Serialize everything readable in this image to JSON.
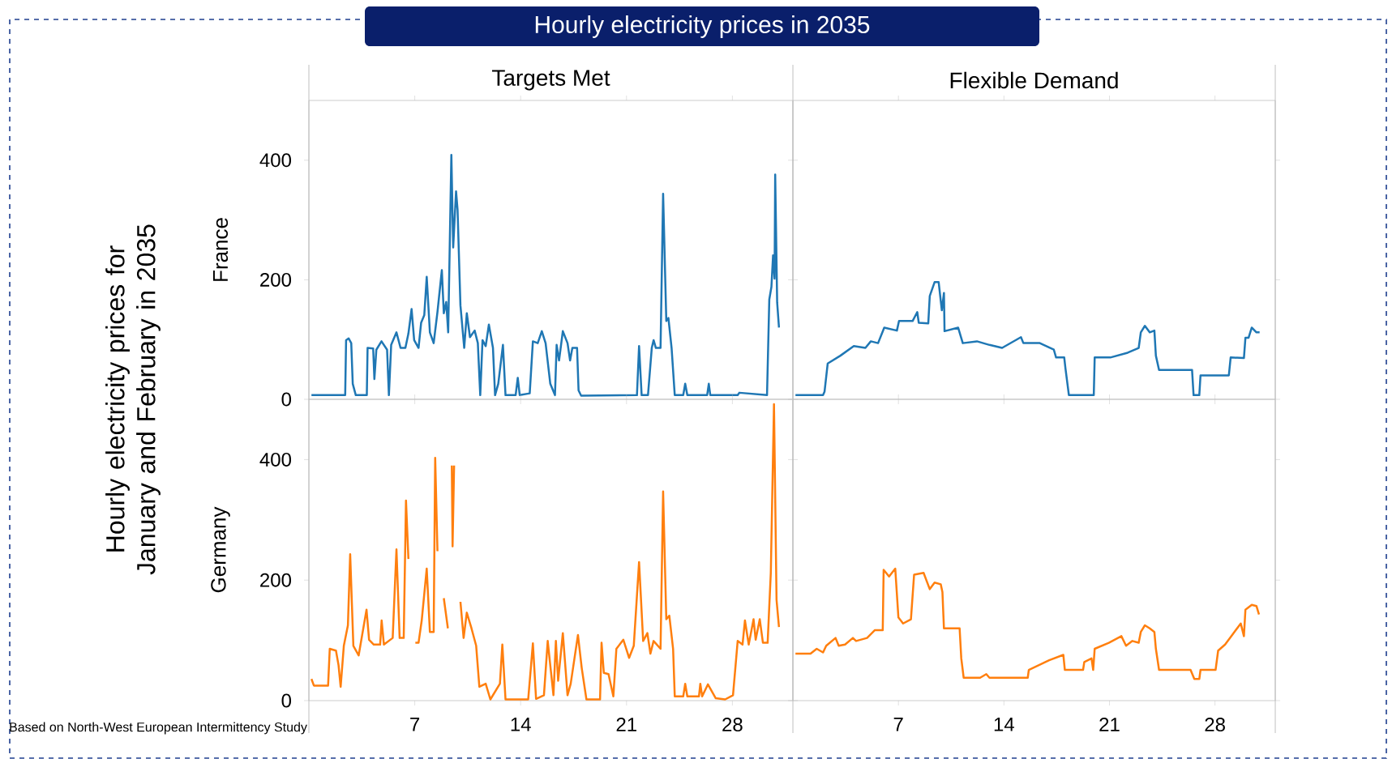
{
  "chart_data": [
    {
      "type": "line",
      "title": "Hourly electricity prices in 2035",
      "subtitle": "Targets Met",
      "ylabel": "France",
      "annotations": [
        "Hourly electricity prices for January and February in 2035"
      ],
      "color": "#1f77b4",
      "xlim": [
        0,
        32
      ],
      "ylim": [
        0,
        500
      ],
      "xticks": [
        {
          "value": 7,
          "label": null
        },
        {
          "value": 14,
          "label": null
        },
        {
          "value": 21,
          "label": null
        },
        {
          "value": 28,
          "label": null
        }
      ],
      "yticks": [
        0,
        200,
        400
      ],
      "tick_labels": "y",
      "x": [
        0.17,
        2.4,
        2.46,
        2.63,
        2.8,
        2.9,
        3.1,
        3.83,
        3.88,
        4.25,
        4.33,
        4.46,
        4.8,
        5.17,
        5.29,
        5.44,
        5.79,
        6.06,
        6.38,
        6.58,
        6.79,
        6.96,
        7.25,
        7.42,
        7.63,
        7.79,
        8.0,
        8.25,
        8.5,
        8.79,
        8.92,
        9.08,
        9.21,
        9.42,
        9.54,
        9.73,
        9.83,
        10.02,
        10.27,
        10.44,
        10.65,
        10.96,
        11.17,
        11.33,
        11.48,
        11.69,
        11.9,
        12.17,
        12.31,
        12.52,
        12.83,
        13.0,
        13.67,
        13.81,
        13.94,
        14.6,
        14.81,
        15.13,
        15.4,
        15.65,
        15.96,
        16.27,
        16.38,
        16.54,
        16.79,
        17.1,
        17.27,
        17.42,
        17.73,
        17.83,
        18.0,
        21.69,
        21.83,
        22.0,
        22.42,
        22.67,
        22.79,
        22.94,
        23.25,
        23.42,
        23.63,
        23.77,
        23.98,
        24.19,
        24.75,
        24.88,
        25.02,
        26.33,
        26.44,
        26.54,
        28.35,
        28.46,
        30.29,
        30.44,
        30.58,
        30.69,
        30.79,
        30.83,
        30.96,
        31.08
      ],
      "values": [
        7,
        7,
        99,
        102,
        94,
        26,
        7,
        7,
        86,
        85,
        34,
        83,
        97,
        83,
        7,
        91,
        112,
        86,
        86,
        110,
        151,
        99,
        86,
        128,
        141,
        205,
        112,
        94,
        146,
        216,
        144,
        163,
        112,
        409,
        254,
        348,
        317,
        157,
        86,
        144,
        104,
        115,
        94,
        7,
        99,
        89,
        125,
        86,
        7,
        26,
        91,
        7,
        7,
        36,
        7,
        10,
        97,
        94,
        114,
        94,
        26,
        7,
        91,
        65,
        114,
        94,
        65,
        86,
        86,
        15,
        6,
        7,
        89,
        7,
        7,
        86,
        99,
        86,
        86,
        344,
        131,
        136,
        86,
        7,
        7,
        26,
        7,
        7,
        26,
        7,
        7,
        11,
        7,
        167,
        188,
        241,
        202,
        376,
        162,
        120
      ]
    },
    {
      "type": "line",
      "subtitle": "Flexible Demand",
      "color": "#1f77b4",
      "xlim": [
        0,
        32
      ],
      "ylim": [
        0,
        500
      ],
      "xticks": [
        {
          "value": 7,
          "label": null
        },
        {
          "value": 14,
          "label": null
        },
        {
          "value": 21,
          "label": null
        },
        {
          "value": 28,
          "label": null
        }
      ],
      "yticks": [
        {
          "value": 0,
          "label": null
        },
        {
          "value": 200,
          "label": null
        },
        {
          "value": 400,
          "label": null
        }
      ],
      "tick_labels": false,
      "x": [
        0.17,
        2.0,
        2.1,
        2.31,
        3.15,
        4.04,
        4.81,
        5.17,
        5.65,
        6.06,
        6.9,
        7.04,
        7.94,
        8.25,
        8.35,
        8.98,
        9.08,
        9.4,
        9.67,
        9.88,
        10.02,
        10.06,
        10.96,
        11.27,
        12.21,
        13.04,
        13.88,
        15.13,
        15.29,
        16.38,
        17.31,
        17.46,
        18.0,
        18.08,
        18.31,
        19.96,
        20.02,
        21.06,
        22.21,
        22.94,
        23.08,
        23.35,
        23.67,
        23.98,
        24.08,
        24.29,
        26.48,
        26.58,
        26.96,
        27.04,
        28.92,
        29.04,
        29.92,
        30.02,
        30.23,
        30.44,
        30.75,
        30.96
      ],
      "values": [
        7,
        7,
        13,
        60,
        73,
        89,
        86,
        97,
        94,
        120,
        115,
        131,
        131,
        146,
        128,
        127,
        173,
        196,
        196,
        149,
        178,
        114,
        120,
        94,
        97,
        91,
        86,
        104,
        94,
        94,
        83,
        70,
        70,
        52,
        7,
        7,
        70,
        70,
        78,
        86,
        112,
        123,
        112,
        115,
        73,
        49,
        49,
        7,
        7,
        40,
        40,
        70,
        69,
        103,
        103,
        120,
        112,
        112
      ]
    },
    {
      "type": "line",
      "ylabel": "Germany",
      "annotations": [
        "Based on North-West European Intermittency Study"
      ],
      "color": "#ff7f0e",
      "xlim": [
        0,
        32
      ],
      "ylim": [
        0,
        500
      ],
      "xticks": [
        7,
        14,
        21,
        28
      ],
      "yticks": [
        0,
        200,
        400
      ],
      "x": [
        0.17,
        0.33,
        1.27,
        1.38,
        1.79,
        1.96,
        2.1,
        2.31,
        2.58,
        2.73,
        2.94,
        3.29,
        3.81,
        3.98,
        4.29,
        4.71,
        4.81,
        4.96,
        5.54,
        5.79,
        6.0,
        6.27,
        6.42,
        6.58,
        6.79,
        7.04,
        7.25,
        7.46,
        7.79,
        8.0,
        8.25,
        8.35,
        8.5,
        8.77,
        8.92,
        9.19,
        9.4,
        9.45,
        9.5,
        9.6,
        9.71,
        10.02,
        10.23,
        10.44,
        10.75,
        11.06,
        11.27,
        11.69,
        12.0,
        12.63,
        12.79,
        13.0,
        14.5,
        14.81,
        15.02,
        15.54,
        15.79,
        16.17,
        16.33,
        16.48,
        16.79,
        17.1,
        17.31,
        17.79,
        18.04,
        18.35,
        19.25,
        19.35,
        19.5,
        19.81,
        20.13,
        20.33,
        20.79,
        21.17,
        21.48,
        21.83,
        22.1,
        22.38,
        22.58,
        22.79,
        23.25,
        23.42,
        23.63,
        23.83,
        24.08,
        24.19,
        24.75,
        24.88,
        25.02,
        25.79,
        25.88,
        26.0,
        26.38,
        26.9,
        27.52,
        28.04,
        28.35,
        28.67,
        28.83,
        29.08,
        29.4,
        29.54,
        29.81,
        30.02,
        30.33,
        30.54,
        30.75,
        30.92,
        31.08
      ],
      "values": [
        36,
        25,
        25,
        86,
        83,
        59,
        23,
        91,
        125,
        243,
        91,
        75,
        151,
        101,
        93,
        93,
        133,
        93,
        104,
        251,
        104,
        104,
        332,
        235,
        null,
        96,
        96,
        133,
        219,
        114,
        114,
        403,
        248,
        null,
        170,
        120,
        null,
        390,
        256,
        390,
        null,
        164,
        104,
        146,
        120,
        91,
        23,
        28,
        2,
        28,
        93,
        2,
        2,
        95,
        3,
        9,
        99,
        9,
        99,
        33,
        112,
        9,
        28,
        109,
        54,
        2,
        2,
        96,
        46,
        44,
        7,
        86,
        101,
        71,
        91,
        230,
        99,
        112,
        78,
        99,
        86,
        347,
        135,
        141,
        86,
        7,
        7,
        28,
        7,
        7,
        28,
        7,
        27,
        4,
        2,
        9,
        99,
        93,
        133,
        93,
        135,
        101,
        135,
        96,
        96,
        212,
        492,
        167,
        122
      ]
    },
    {
      "type": "line",
      "color": "#ff7f0e",
      "xlim": [
        0,
        32
      ],
      "ylim": [
        0,
        500
      ],
      "xticks": [
        7,
        14,
        21,
        28
      ],
      "yticks": [
        {
          "value": 0,
          "label": null
        },
        {
          "value": 200,
          "label": null
        },
        {
          "value": 400,
          "label": null
        }
      ],
      "tick_labels": "x",
      "x": [
        0.17,
        1.17,
        1.58,
        2.0,
        2.21,
        2.83,
        3.04,
        3.46,
        3.98,
        4.19,
        4.92,
        5.44,
        5.96,
        6.02,
        6.38,
        6.79,
        7.0,
        7.31,
        7.83,
        8.04,
        8.67,
        9.08,
        9.4,
        9.81,
        9.92,
        10.02,
        11.06,
        11.17,
        11.33,
        12.42,
        12.83,
        13.04,
        15.58,
        15.65,
        17.0,
        17.94,
        18.04,
        19.25,
        19.33,
        19.81,
        19.92,
        20.02,
        20.96,
        21.79,
        22.1,
        22.52,
        22.94,
        23.08,
        23.35,
        23.67,
        23.98,
        24.08,
        24.29,
        26.38,
        26.63,
        26.96,
        27.04,
        28.04,
        28.21,
        28.67,
        29.08,
        29.71,
        29.92,
        30.02,
        30.44,
        30.75,
        30.92
      ],
      "values": [
        78,
        78,
        86,
        80,
        91,
        104,
        91,
        93,
        104,
        99,
        104,
        117,
        117,
        217,
        206,
        219,
        138,
        128,
        135,
        209,
        212,
        185,
        196,
        193,
        180,
        120,
        120,
        70,
        38,
        38,
        44,
        38,
        38,
        51,
        67,
        76,
        51,
        51,
        64,
        70,
        51,
        86,
        96,
        107,
        91,
        99,
        96,
        114,
        125,
        120,
        114,
        86,
        51,
        51,
        36,
        36,
        51,
        51,
        83,
        93,
        107,
        128,
        107,
        151,
        159,
        157,
        143
      ]
    }
  ]
}
